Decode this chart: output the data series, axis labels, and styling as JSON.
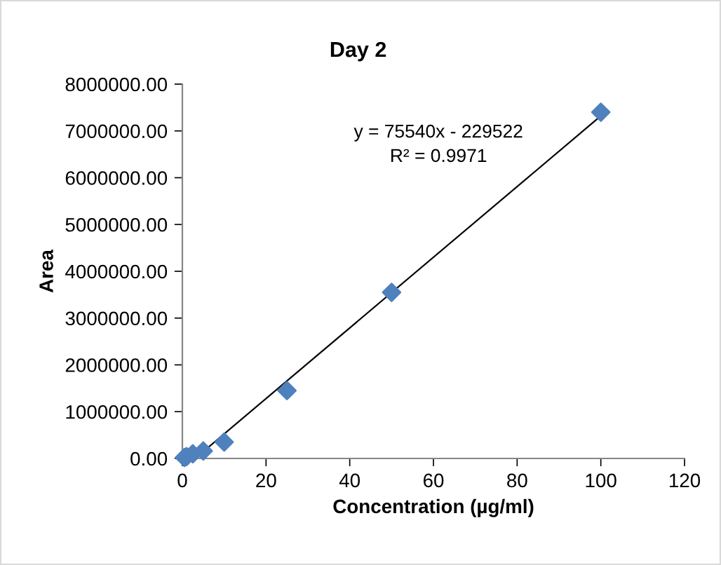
{
  "chart_data": {
    "type": "scatter",
    "title": "Day 2",
    "xlabel": "Concentration (µg/ml)",
    "ylabel": "Area",
    "series": [
      {
        "color": "#4f81bd",
        "x": [
          0.5,
          1,
          2.5,
          5,
          10,
          25,
          50,
          100
        ],
        "values": [
          20000,
          40000,
          100000,
          160000,
          350000,
          1450000,
          3550000,
          7400000
        ],
        "marker": "diamond"
      },
      {
        "type": "line",
        "color": "#000000",
        "x": [
          3.04,
          100
        ],
        "values": [
          0,
          7320000
        ],
        "marker": "none",
        "line_style": "solid"
      }
    ],
    "annotations": [
      "y = 75540x - 229522",
      "R² = 0.9971"
    ],
    "xlim": [
      0,
      120
    ],
    "xticks": [
      0,
      20,
      40,
      60,
      80,
      100,
      120
    ],
    "ylim": [
      0,
      8000000
    ],
    "yticks": [
      {
        "value": 0,
        "label": "0.00"
      },
      {
        "value": 1000000,
        "label": "1000000.00"
      },
      {
        "value": 2000000,
        "label": "2000000.00"
      },
      {
        "value": 3000000,
        "label": "3000000.00"
      },
      {
        "value": 4000000,
        "label": "4000000.00"
      },
      {
        "value": 5000000,
        "label": "5000000.00"
      },
      {
        "value": 6000000,
        "label": "6000000.00"
      },
      {
        "value": 7000000,
        "label": "7000000.00"
      },
      {
        "value": 8000000,
        "label": "8000000.00"
      }
    ],
    "grid": false
  }
}
